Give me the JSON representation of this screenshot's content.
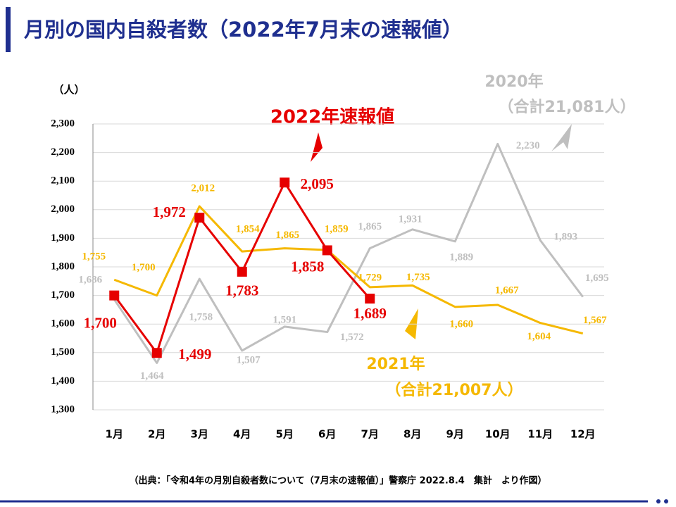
{
  "chart_data": {
    "type": "line",
    "title": "月別の国内自殺者数（2022年7月末の速報値）",
    "y_unit": "（人）",
    "categories": [
      "1月",
      "2月",
      "3月",
      "4月",
      "5月",
      "6月",
      "7月",
      "8月",
      "9月",
      "10月",
      "11月",
      "12月"
    ],
    "ylim": [
      1300,
      2300
    ],
    "yticks": [
      {
        "value": 1300,
        "label": "1,300"
      },
      {
        "value": 1400,
        "label": "1,400"
      },
      {
        "value": 1500,
        "label": "1,500"
      },
      {
        "value": 1600,
        "label": "1,600"
      },
      {
        "value": 1700,
        "label": "1,700"
      },
      {
        "value": 1800,
        "label": "1,800"
      },
      {
        "value": 1900,
        "label": "1,900"
      },
      {
        "value": 2000,
        "label": "2,000"
      },
      {
        "value": 2100,
        "label": "2,100"
      },
      {
        "value": 2200,
        "label": "2,200"
      },
      {
        "value": 2300,
        "label": "2,300"
      }
    ],
    "grid": true,
    "series": [
      {
        "name": "2020年",
        "color": "#bfbfbf",
        "values": [
          1686,
          1464,
          1758,
          1507,
          1591,
          1572,
          1865,
          1931,
          1889,
          2230,
          1893,
          1695
        ],
        "value_labels": [
          "1,686",
          "1,464",
          "1,758",
          "1,507",
          "1,591",
          "1,572",
          "1,865",
          "1,931",
          "1,889",
          "2,230",
          "1,893",
          "1,695"
        ]
      },
      {
        "name": "2021年",
        "color": "#f5b800",
        "values": [
          1755,
          1700,
          2012,
          1854,
          1865,
          1859,
          1729,
          1735,
          1660,
          1667,
          1604,
          1567
        ],
        "value_labels": [
          "1,755",
          "1,700",
          "2,012",
          "1,854",
          "1,865",
          "1,859",
          "1,729",
          "1,735",
          "1,660",
          "1,667",
          "1,604",
          "1,567"
        ]
      },
      {
        "name": "2022年速報値",
        "color": "#e60000",
        "values": [
          1700,
          1499,
          1972,
          1783,
          2095,
          1858,
          1689,
          null,
          null,
          null,
          null,
          null
        ],
        "value_labels": [
          "1,700",
          "1,499",
          "1,972",
          "1,783",
          "2,095",
          "1,858",
          "1,689",
          null,
          null,
          null,
          null,
          null
        ]
      }
    ],
    "annotations": {
      "total_2020": "（合計21,081人）",
      "total_2021": "（合計21,007人）"
    },
    "source": "（出典：「令和4年の月別自殺者数について（7月末の速報値）」警察庁 2022.8.4　集計　より作図）"
  }
}
